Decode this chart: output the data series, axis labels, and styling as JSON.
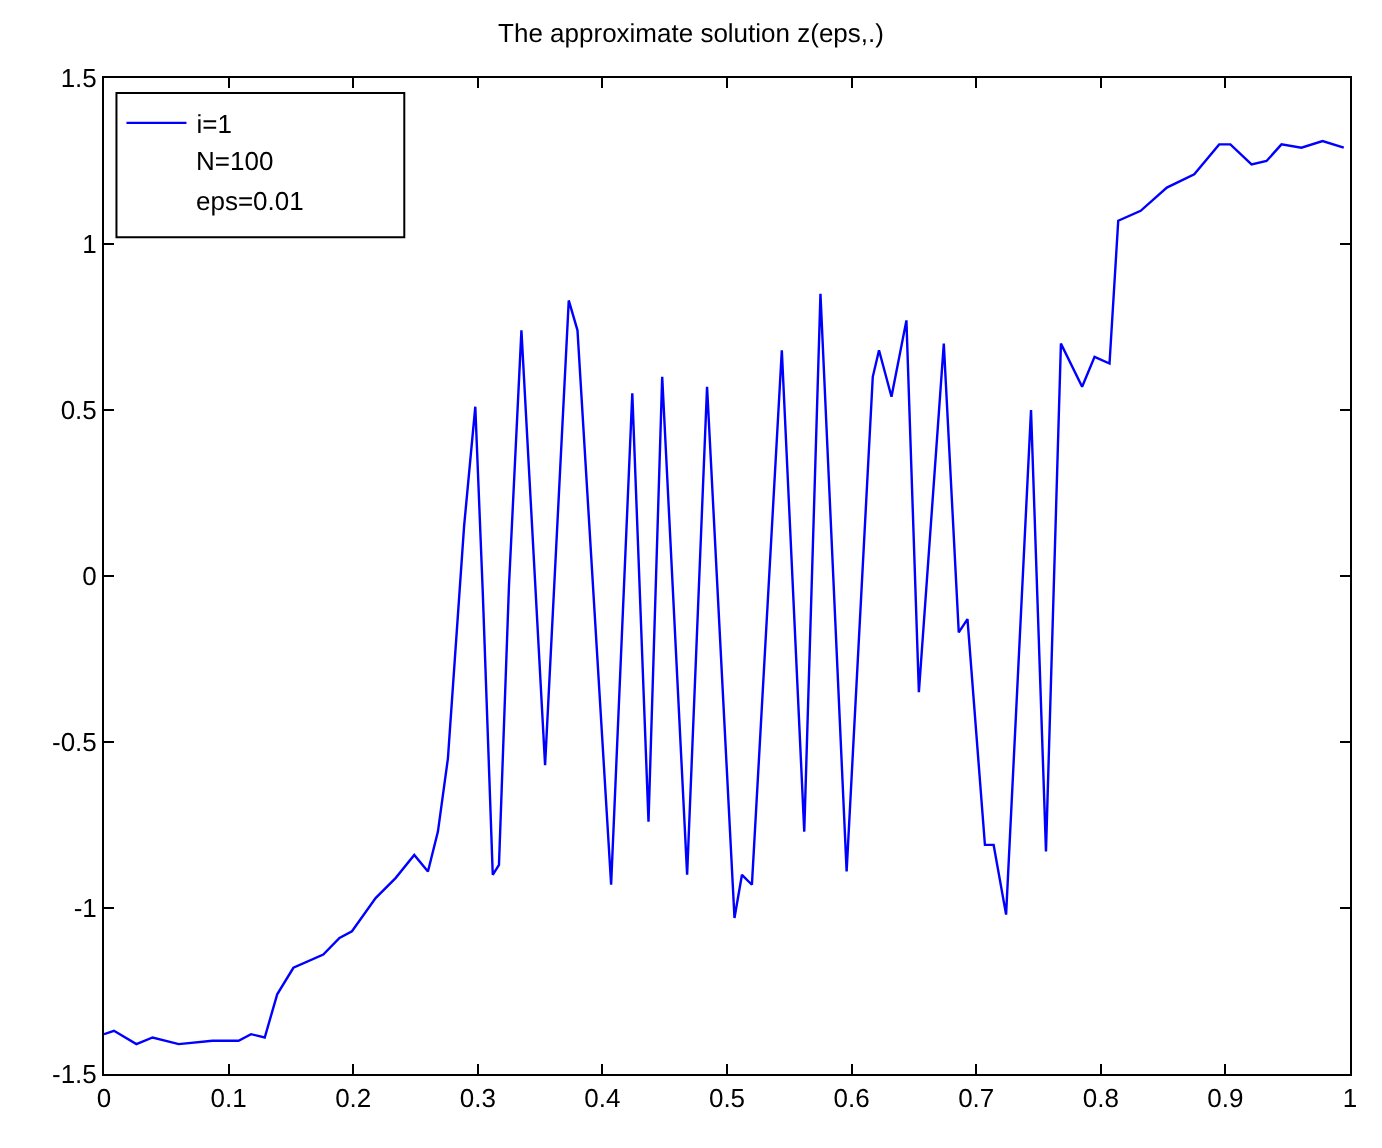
{
  "chart_data": {
    "type": "line",
    "title": "The approximate solution z(eps,.)",
    "x": [
      0,
      0.008,
      0.026,
      0.039,
      0.06,
      0.087,
      0.108,
      0.118,
      0.129,
      0.139,
      0.152,
      0.176,
      0.189,
      0.199,
      0.218,
      0.234,
      0.249,
      0.26,
      0.268,
      0.276,
      0.289,
      0.298,
      0.304,
      0.312,
      0.317,
      0.325,
      0.335,
      0.354,
      0.373,
      0.38,
      0.407,
      0.424,
      0.437,
      0.448,
      0.468,
      0.484,
      0.506,
      0.512,
      0.52,
      0.544,
      0.562,
      0.575,
      0.596,
      0.617,
      0.622,
      0.632,
      0.644,
      0.654,
      0.674,
      0.686,
      0.693,
      0.707,
      0.714,
      0.724,
      0.744,
      0.756,
      0.768,
      0.785,
      0.795,
      0.807,
      0.814,
      0.832,
      0.853,
      0.875,
      0.895,
      0.904,
      0.921,
      0.933,
      0.945,
      0.961,
      0.978,
      0.995
    ],
    "series": [
      {
        "name": "i=1",
        "color": "#0000ff",
        "values": [
          -1.38,
          -1.37,
          -1.41,
          -1.39,
          -1.41,
          -1.4,
          -1.4,
          -1.38,
          -1.39,
          -1.26,
          -1.18,
          -1.14,
          -1.09,
          -1.07,
          -0.97,
          -0.91,
          -0.84,
          -0.89,
          -0.77,
          -0.55,
          0.15,
          0.51,
          -0.05,
          -0.9,
          -0.87,
          -0.03,
          0.74,
          -0.57,
          0.83,
          0.74,
          -0.93,
          0.55,
          -0.74,
          0.6,
          -0.9,
          0.57,
          -1.03,
          -0.9,
          -0.93,
          0.68,
          -0.77,
          0.85,
          -0.89,
          0.6,
          0.68,
          0.54,
          0.77,
          -0.35,
          0.7,
          -0.17,
          -0.13,
          -0.81,
          -0.81,
          -1.02,
          0.5,
          -0.83,
          0.7,
          0.57,
          0.66,
          0.64,
          1.07,
          1.1,
          1.17,
          1.21,
          1.3,
          1.3,
          1.24,
          1.25,
          1.3,
          1.29,
          1.31,
          1.29
        ]
      }
    ],
    "annotations": [
      "N=100",
      "eps=0.01"
    ],
    "xlim": [
      0,
      1
    ],
    "xticks": [
      0,
      0.1,
      0.2,
      0.3,
      0.4,
      0.5,
      0.6,
      0.7,
      0.8,
      0.9,
      1
    ],
    "ylim": [
      -1.5,
      1.5
    ],
    "yticks": [
      -1.5,
      -1,
      -0.5,
      0,
      0.5,
      1,
      1.5
    ],
    "legend": "top left"
  }
}
